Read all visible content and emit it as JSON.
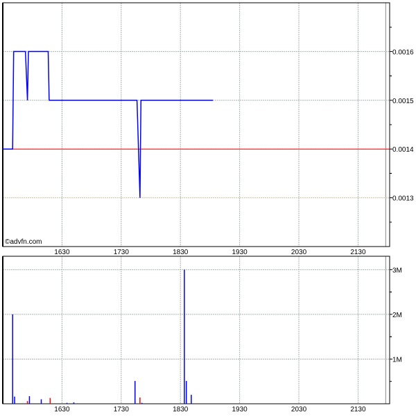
{
  "watermark": "©advfn.com",
  "colors": {
    "price_line": "#0000ff",
    "reference_line": "#ff0000",
    "volume_up": "#0000ff",
    "volume_down": "#ff0000",
    "grid": "#a8b4b4"
  },
  "chart_data": [
    {
      "type": "line",
      "name": "price",
      "x_ticks": [
        "1630",
        "1730",
        "1830",
        "1930",
        "2030",
        "2130"
      ],
      "xlim": [
        "1530",
        "2202"
      ],
      "y_ticks": [
        "0.0013",
        "0.0014",
        "0.0015",
        "0.0016"
      ],
      "ylim": [
        0.0012,
        0.0017
      ],
      "grid": true,
      "reference_line": 0.0014,
      "points": [
        {
          "t": "1530",
          "v": 0.0014
        },
        {
          "t": "1540",
          "v": 0.0014
        },
        {
          "t": "1541",
          "v": 0.0016
        },
        {
          "t": "1553",
          "v": 0.0016
        },
        {
          "t": "1555",
          "v": 0.0015
        },
        {
          "t": "1556",
          "v": 0.0016
        },
        {
          "t": "1616",
          "v": 0.0016
        },
        {
          "t": "1617",
          "v": 0.0015
        },
        {
          "t": "1746",
          "v": 0.0015
        },
        {
          "t": "1749",
          "v": 0.0013
        },
        {
          "t": "1750",
          "v": 0.0015
        },
        {
          "t": "1903",
          "v": 0.0015
        }
      ]
    },
    {
      "type": "bar",
      "name": "volume",
      "x_ticks": [
        "1630",
        "1730",
        "1830",
        "1930",
        "2030",
        "2130"
      ],
      "xlim": [
        "1530",
        "2202"
      ],
      "y_ticks": [
        "1M",
        "2M",
        "3M"
      ],
      "ylim": [
        0,
        3300000
      ],
      "grid": true,
      "bars": [
        {
          "t": "1540",
          "v": 2000000,
          "dir": "up"
        },
        {
          "t": "1542",
          "v": 160000,
          "dir": "up"
        },
        {
          "t": "1555",
          "v": 60000,
          "dir": "down"
        },
        {
          "t": "1557",
          "v": 170000,
          "dir": "up"
        },
        {
          "t": "1609",
          "v": 100000,
          "dir": "up"
        },
        {
          "t": "1618",
          "v": 130000,
          "dir": "down"
        },
        {
          "t": "1635",
          "v": 20000,
          "dir": "up"
        },
        {
          "t": "1642",
          "v": 30000,
          "dir": "up"
        },
        {
          "t": "1744",
          "v": 510000,
          "dir": "up"
        },
        {
          "t": "1749",
          "v": 140000,
          "dir": "down"
        },
        {
          "t": "1751",
          "v": 20000,
          "dir": "up"
        },
        {
          "t": "1834",
          "v": 3000000,
          "dir": "up"
        },
        {
          "t": "1836",
          "v": 510000,
          "dir": "up"
        },
        {
          "t": "1841",
          "v": 200000,
          "dir": "up"
        }
      ]
    }
  ]
}
